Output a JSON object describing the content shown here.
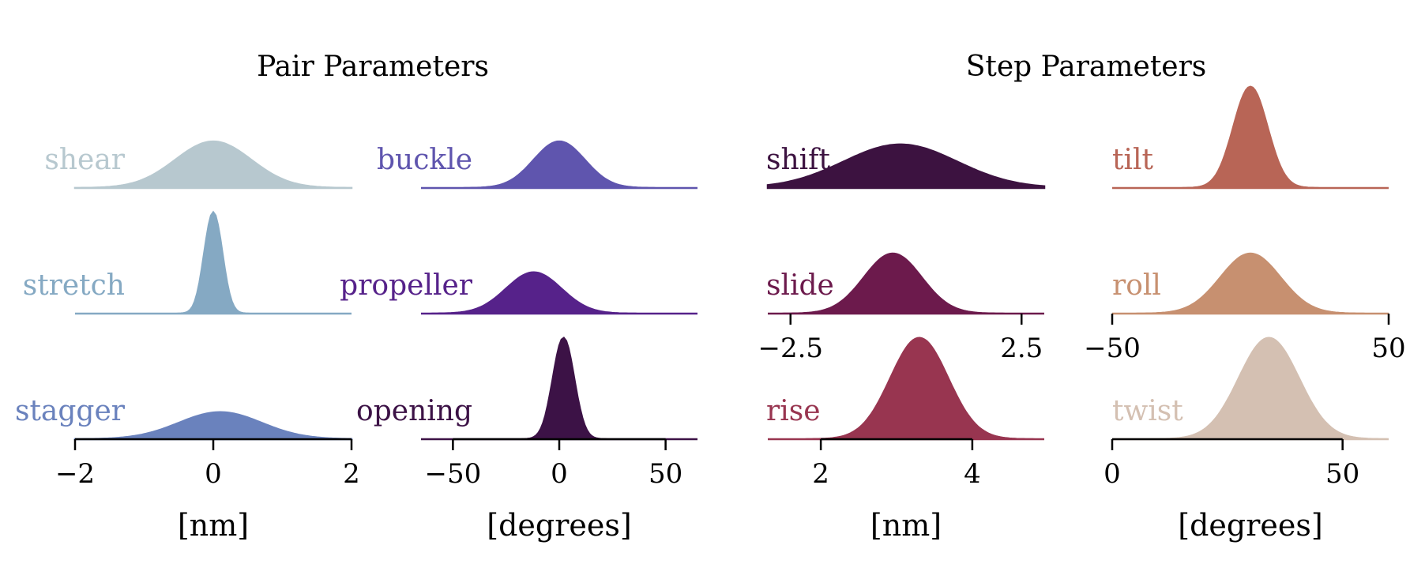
{
  "chart_data": {
    "type": "ridgeline",
    "titles": [
      {
        "text": "Pair Parameters"
      },
      {
        "text": "Step Parameters"
      }
    ],
    "panels": [
      {
        "id": "pair-nm",
        "xlim": [
          -2,
          2
        ],
        "ticks": [
          {
            "value": -2,
            "label": "−2"
          },
          {
            "value": 0,
            "label": "0"
          },
          {
            "value": 2,
            "label": "2"
          }
        ],
        "unit": "[nm]",
        "series": [
          {
            "name": "shear",
            "color": "#b7c8cf",
            "mean": 0.0,
            "sd": 0.55,
            "peak": 0.62
          },
          {
            "name": "stretch",
            "color": "#85a9c3",
            "mean": 0.0,
            "sd": 0.13,
            "peak": 1.35
          },
          {
            "name": "stagger",
            "color": "#6a82bd",
            "mean": 0.1,
            "sd": 0.6,
            "peak": 0.36
          }
        ]
      },
      {
        "id": "pair-deg",
        "xlim": [
          -65,
          65
        ],
        "ticks": [
          {
            "value": -50,
            "label": "−50"
          },
          {
            "value": 0,
            "label": "0"
          },
          {
            "value": 50,
            "label": "50"
          }
        ],
        "unit": "[degrees]",
        "series": [
          {
            "name": "buckle",
            "color": "#5f55ae",
            "mean": 0,
            "sd": 12,
            "peak": 0.62
          },
          {
            "name": "propeller",
            "color": "#56228a",
            "mean": -12,
            "sd": 13,
            "peak": 0.55
          },
          {
            "name": "opening",
            "color": "#3c1246",
            "mean": 2,
            "sd": 5,
            "peak": 1.35
          }
        ]
      },
      {
        "id": "step-nm",
        "xlim": [
          1.3,
          4.95
        ],
        "tick_rows": [
          {
            "row": 1,
            "ticks": [
              {
                "value": 1.6,
                "label": "−2.5"
              },
              {
                "value": 4.65,
                "label": "2.5"
              }
            ]
          },
          {
            "row": 2,
            "ticks": [
              {
                "value": 2,
                "label": "2"
              },
              {
                "value": 4,
                "label": "4"
              }
            ]
          }
        ],
        "unit": "[nm]",
        "series": [
          {
            "name": "shift",
            "color": "#3c1240",
            "mean": 3.05,
            "sd": 0.75,
            "peak": 0.58
          },
          {
            "name": "slide",
            "color": "#6c1a4c",
            "mean": 2.95,
            "sd": 0.38,
            "peak": 0.8
          },
          {
            "name": "rise",
            "color": "#983550",
            "mean": 3.3,
            "sd": 0.38,
            "peak": 1.35
          }
        ]
      },
      {
        "id": "step-deg",
        "xlim": [
          0,
          60
        ],
        "tick_rows": [
          {
            "row": 1,
            "ticks": [
              {
                "value": 0,
                "label": "−50"
              },
              {
                "value": 60,
                "label": "50"
              }
            ]
          },
          {
            "row": 2,
            "ticks": [
              {
                "value": 0,
                "label": "0"
              },
              {
                "value": 50,
                "label": "50"
              }
            ]
          }
        ],
        "unit": "[degrees]",
        "series": [
          {
            "name": "tilt",
            "color": "#b86556",
            "mean": 30,
            "sd": 3.7,
            "peak": 1.35
          },
          {
            "name": "roll",
            "color": "#c79070",
            "mean": 30,
            "sd": 6.5,
            "peak": 0.8
          },
          {
            "name": "twist",
            "color": "#d4c0b2",
            "mean": 34,
            "sd": 6.5,
            "peak": 1.35
          }
        ]
      }
    ]
  }
}
